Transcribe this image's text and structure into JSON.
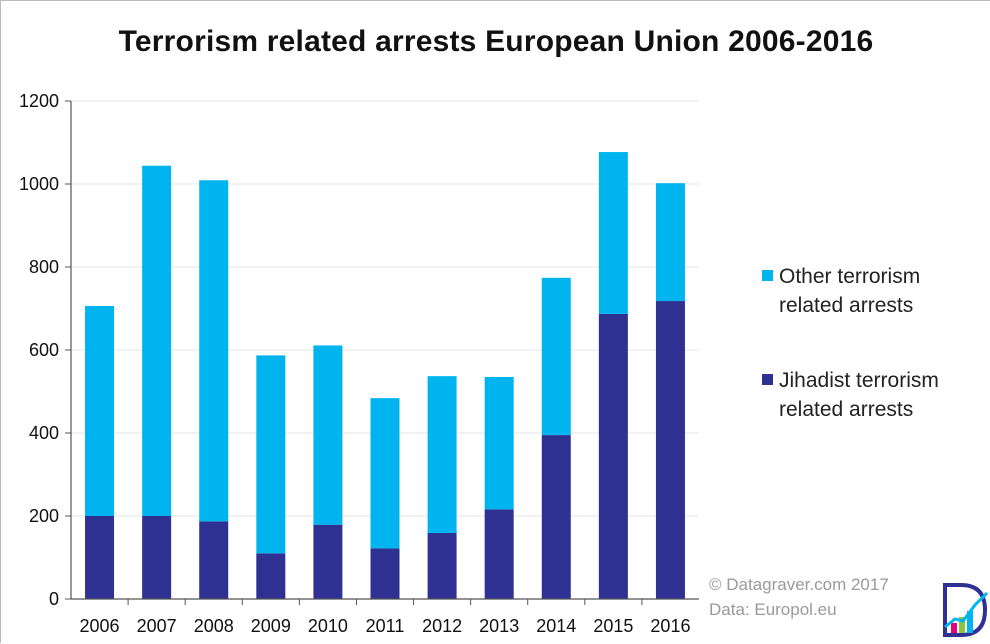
{
  "chart_data": {
    "type": "bar",
    "stacked": true,
    "title": "Terrorism related arrests European Union 2006-2016",
    "xlabel": "",
    "ylabel": "",
    "ylim": [
      0,
      1200
    ],
    "yticks": [
      0,
      200,
      400,
      600,
      800,
      1000,
      1200
    ],
    "grid": true,
    "legend_placement": "right",
    "categories": [
      "2006",
      "2007",
      "2008",
      "2009",
      "2010",
      "2011",
      "2012",
      "2013",
      "2014",
      "2015",
      "2016"
    ],
    "series": [
      {
        "name": "Jihadist terrorism related arrests",
        "legend_lines": [
          "Jihadist terrorism",
          "related arrests"
        ],
        "color": "#2e3192",
        "values": [
          200,
          200,
          187,
          110,
          179,
          122,
          159,
          216,
          395,
          687,
          718
        ]
      },
      {
        "name": "Other terrorism related arrests",
        "legend_lines": [
          "Other terrorism",
          "related arrests"
        ],
        "color": "#00b5ef",
        "values": [
          506,
          844,
          822,
          477,
          432,
          362,
          378,
          319,
          379,
          390,
          284
        ]
      }
    ]
  },
  "credits": {
    "line1": "© Datagraver.com 2017",
    "line2": "Data: Europol.eu"
  },
  "logo": {
    "icon": "datagraver-logo-icon",
    "colors": [
      "#2e3192",
      "#00b5ef",
      "#8dc63f",
      "#e6007e"
    ]
  }
}
